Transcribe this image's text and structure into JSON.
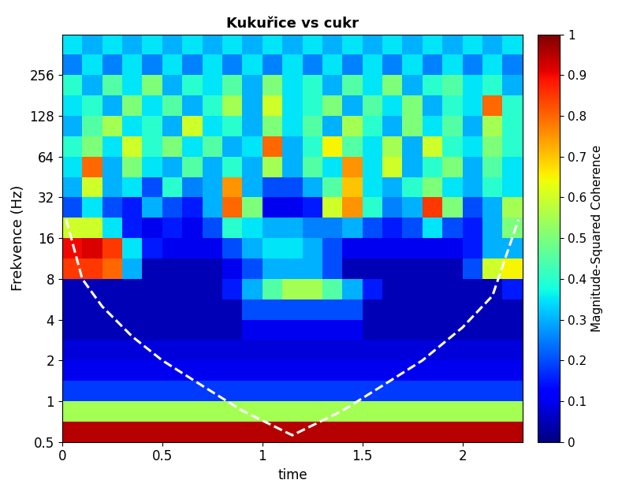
{
  "chart_data": {
    "type": "heatmap",
    "title": "Kukuřice vs cukr",
    "xlabel": "time",
    "ylabel": "Frekvence (Hz)",
    "log": "y",
    "xlim": [
      0,
      2.3
    ],
    "ylim": [
      0.5,
      512
    ],
    "xticks": [
      0,
      0.5,
      1,
      1.5,
      2
    ],
    "yticks": [
      0.5,
      1,
      2,
      4,
      8,
      16,
      32,
      64,
      128,
      256
    ],
    "x_edges": [
      0,
      0.1,
      0.2,
      0.3,
      0.4,
      0.5,
      0.6,
      0.7,
      0.8,
      0.9,
      1.0,
      1.1,
      1.2,
      1.3,
      1.4,
      1.5,
      1.6,
      1.7,
      1.8,
      1.9,
      2.0,
      2.1,
      2.2,
      2.3
    ],
    "y_edges": [
      0.5,
      0.707,
      1,
      1.414,
      2,
      2.828,
      4,
      5.657,
      8,
      11.31,
      16,
      22.63,
      32,
      45.25,
      64,
      90.51,
      128,
      181,
      256,
      362,
      512
    ],
    "cells": [
      [
        0.95,
        0.95,
        0.95,
        0.95,
        0.95,
        0.95,
        0.95,
        0.95,
        0.95,
        0.95,
        0.95,
        0.95,
        0.95,
        0.95,
        0.95,
        0.95,
        0.95,
        0.95,
        0.95,
        0.95,
        0.95,
        0.95,
        0.95
      ],
      [
        0.55,
        0.55,
        0.55,
        0.55,
        0.55,
        0.55,
        0.55,
        0.55,
        0.55,
        0.55,
        0.55,
        0.55,
        0.55,
        0.55,
        0.55,
        0.55,
        0.55,
        0.55,
        0.55,
        0.55,
        0.55,
        0.55,
        0.55
      ],
      [
        0.18,
        0.18,
        0.18,
        0.18,
        0.18,
        0.18,
        0.18,
        0.18,
        0.18,
        0.18,
        0.18,
        0.18,
        0.18,
        0.18,
        0.18,
        0.18,
        0.18,
        0.18,
        0.18,
        0.18,
        0.18,
        0.18,
        0.18
      ],
      [
        0.1,
        0.1,
        0.1,
        0.1,
        0.1,
        0.1,
        0.1,
        0.1,
        0.1,
        0.1,
        0.1,
        0.1,
        0.1,
        0.1,
        0.1,
        0.1,
        0.1,
        0.1,
        0.1,
        0.1,
        0.1,
        0.1,
        0.1
      ],
      [
        0.08,
        0.08,
        0.08,
        0.08,
        0.08,
        0.08,
        0.08,
        0.08,
        0.08,
        0.08,
        0.08,
        0.08,
        0.08,
        0.08,
        0.08,
        0.08,
        0.08,
        0.08,
        0.08,
        0.08,
        0.08,
        0.08,
        0.08
      ],
      [
        0.05,
        0.05,
        0.05,
        0.05,
        0.05,
        0.05,
        0.05,
        0.05,
        0.05,
        0.1,
        0.1,
        0.1,
        0.1,
        0.1,
        0.1,
        0.05,
        0.05,
        0.05,
        0.05,
        0.05,
        0.05,
        0.05,
        0.05
      ],
      [
        0.05,
        0.05,
        0.05,
        0.05,
        0.05,
        0.05,
        0.05,
        0.05,
        0.05,
        0.2,
        0.2,
        0.2,
        0.2,
        0.2,
        0.2,
        0.05,
        0.05,
        0.05,
        0.05,
        0.05,
        0.05,
        0.05,
        0.05
      ],
      [
        0.05,
        0.05,
        0.05,
        0.05,
        0.05,
        0.05,
        0.05,
        0.05,
        0.15,
        0.3,
        0.45,
        0.55,
        0.55,
        0.45,
        0.3,
        0.15,
        0.05,
        0.05,
        0.05,
        0.05,
        0.05,
        0.05,
        0.15
      ],
      [
        0.85,
        0.85,
        0.8,
        0.3,
        0.05,
        0.05,
        0.05,
        0.05,
        0.1,
        0.2,
        0.3,
        0.3,
        0.3,
        0.2,
        0.05,
        0.05,
        0.05,
        0.05,
        0.05,
        0.05,
        0.2,
        0.6,
        0.65
      ],
      [
        0.9,
        0.92,
        0.85,
        0.35,
        0.15,
        0.1,
        0.1,
        0.1,
        0.2,
        0.3,
        0.35,
        0.35,
        0.3,
        0.2,
        0.1,
        0.1,
        0.1,
        0.1,
        0.1,
        0.1,
        0.15,
        0.3,
        0.3
      ],
      [
        0.6,
        0.6,
        0.35,
        0.15,
        0.1,
        0.15,
        0.1,
        0.2,
        0.4,
        0.35,
        0.3,
        0.3,
        0.25,
        0.25,
        0.3,
        0.2,
        0.15,
        0.2,
        0.35,
        0.2,
        0.15,
        0.3,
        0.5
      ],
      [
        0.2,
        0.35,
        0.2,
        0.15,
        0.3,
        0.2,
        0.15,
        0.3,
        0.8,
        0.5,
        0.1,
        0.1,
        0.15,
        0.6,
        0.75,
        0.4,
        0.25,
        0.3,
        0.85,
        0.5,
        0.2,
        0.3,
        0.55
      ],
      [
        0.3,
        0.6,
        0.3,
        0.35,
        0.2,
        0.4,
        0.25,
        0.3,
        0.75,
        0.3,
        0.2,
        0.2,
        0.3,
        0.45,
        0.7,
        0.35,
        0.3,
        0.4,
        0.5,
        0.35,
        0.3,
        0.4,
        0.35
      ],
      [
        0.35,
        0.8,
        0.3,
        0.5,
        0.35,
        0.3,
        0.45,
        0.3,
        0.4,
        0.3,
        0.55,
        0.3,
        0.45,
        0.35,
        0.75,
        0.35,
        0.6,
        0.3,
        0.4,
        0.5,
        0.3,
        0.45,
        0.35
      ],
      [
        0.4,
        0.5,
        0.35,
        0.6,
        0.4,
        0.5,
        0.35,
        0.45,
        0.3,
        0.35,
        0.8,
        0.3,
        0.4,
        0.65,
        0.45,
        0.35,
        0.55,
        0.3,
        0.6,
        0.4,
        0.35,
        0.5,
        0.4
      ],
      [
        0.3,
        0.45,
        0.55,
        0.35,
        0.4,
        0.3,
        0.6,
        0.35,
        0.4,
        0.3,
        0.5,
        0.35,
        0.45,
        0.3,
        0.55,
        0.4,
        0.3,
        0.5,
        0.35,
        0.45,
        0.3,
        0.55,
        0.4
      ],
      [
        0.35,
        0.4,
        0.3,
        0.5,
        0.35,
        0.45,
        0.3,
        0.4,
        0.55,
        0.3,
        0.6,
        0.35,
        0.4,
        0.5,
        0.3,
        0.45,
        0.35,
        0.5,
        0.3,
        0.4,
        0.35,
        0.8,
        0.4
      ],
      [
        0.4,
        0.3,
        0.45,
        0.35,
        0.5,
        0.3,
        0.4,
        0.35,
        0.45,
        0.3,
        0.5,
        0.35,
        0.4,
        0.3,
        0.45,
        0.35,
        0.5,
        0.3,
        0.4,
        0.45,
        0.35,
        0.4,
        0.3
      ],
      [
        0.25,
        0.35,
        0.25,
        0.35,
        0.25,
        0.35,
        0.25,
        0.35,
        0.25,
        0.35,
        0.25,
        0.35,
        0.25,
        0.35,
        0.25,
        0.35,
        0.25,
        0.35,
        0.25,
        0.35,
        0.25,
        0.35,
        0.25
      ],
      [
        0.35,
        0.3,
        0.35,
        0.3,
        0.35,
        0.3,
        0.35,
        0.3,
        0.35,
        0.3,
        0.35,
        0.3,
        0.35,
        0.3,
        0.35,
        0.3,
        0.35,
        0.3,
        0.35,
        0.3,
        0.35,
        0.3,
        0.35
      ]
    ],
    "colorbar": {
      "label": "Magnitude-Squared Coherence",
      "range": [
        0,
        1
      ],
      "ticks": [
        0,
        0.1,
        0.2,
        0.3,
        0.4,
        0.5,
        0.6,
        0.7,
        0.8,
        0.9,
        1
      ]
    },
    "coi": {
      "x": [
        0.02,
        0.1,
        0.2,
        0.35,
        0.5,
        0.7,
        0.9,
        1.15,
        1.4,
        1.6,
        1.8,
        2.0,
        2.15,
        2.28
      ],
      "y": [
        22,
        8,
        5,
        3,
        2,
        1.3,
        0.85,
        0.56,
        0.85,
        1.3,
        2,
        3.5,
        6,
        22
      ]
    }
  }
}
